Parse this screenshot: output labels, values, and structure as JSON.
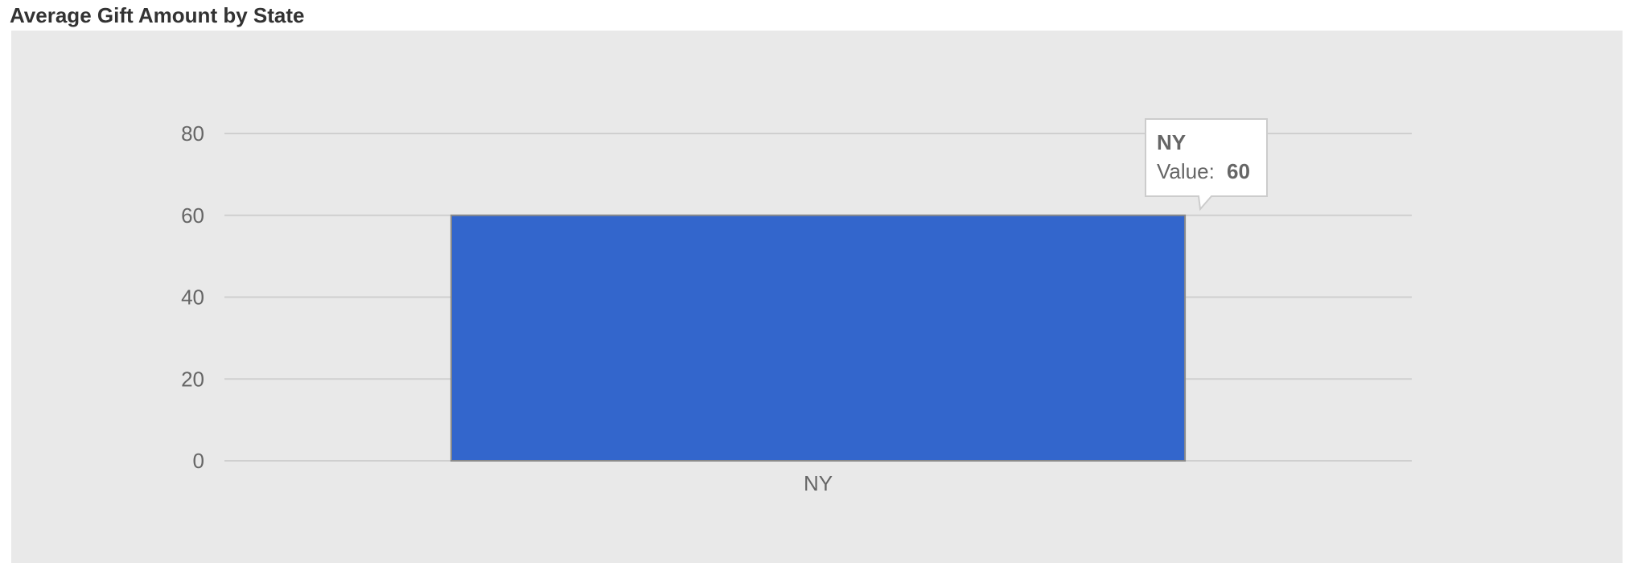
{
  "chart_data": {
    "type": "bar",
    "title": "Average Gift Amount by State",
    "categories": [
      "NY"
    ],
    "values": [
      60
    ],
    "ylim": [
      0,
      80
    ],
    "yticks": [
      0,
      20,
      40,
      60,
      80
    ],
    "grid": true,
    "bar_color": "#3366cc",
    "tooltip": {
      "category": "NY",
      "value_label": "Value:",
      "value": "60"
    }
  }
}
